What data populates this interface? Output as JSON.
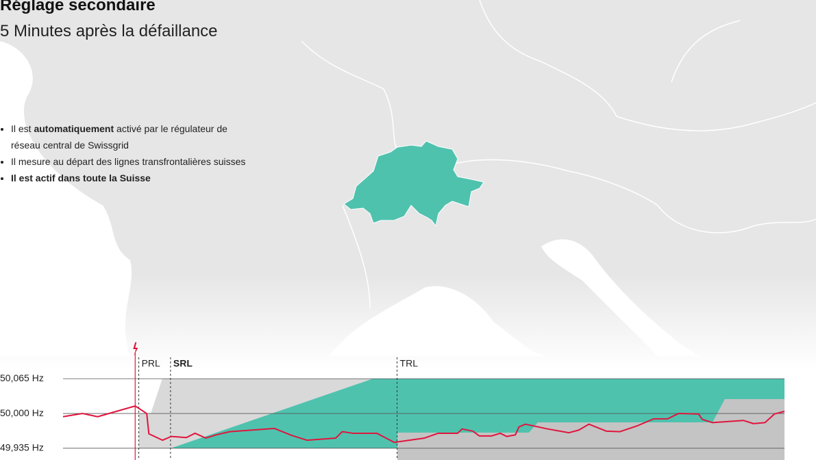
{
  "header": {
    "title": "Réglage secondaire",
    "subtitle": "5 Minutes après la défaillance"
  },
  "bullets": [
    {
      "segments": [
        {
          "text": "Il est "
        },
        {
          "text": "automatiquement",
          "bold": true
        },
        {
          "text": " activé par le régulateur de réseau central de Swissgrid"
        }
      ]
    },
    {
      "segments": [
        {
          "text": "Il mesure au départ des lignes transfrontalières suisses"
        }
      ]
    },
    {
      "segments": [
        {
          "text": "Il est actif dans toute la Suisse",
          "bold": true
        }
      ]
    }
  ],
  "chart_data": {
    "type": "line",
    "x": [
      0,
      2.7,
      4.8,
      10.0,
      11.6,
      11.9,
      13.8,
      15.0,
      17.1,
      18.3,
      19.8,
      21.2,
      23.1,
      29.3,
      31.7,
      33.8,
      37.8,
      38.7,
      40.2,
      43.5,
      45.9,
      50.1,
      52.0,
      54.7,
      55.3,
      56.8,
      57.7,
      59.4,
      60.6,
      61.5,
      62.7,
      63.2,
      64.1,
      67.2,
      70.1,
      71.5,
      72.9,
      75.3,
      77.2,
      79.6,
      81.9,
      83.8,
      85.3,
      88.1,
      88.6,
      90.0,
      94.3,
      95.7,
      97.3,
      98.6,
      100
    ],
    "series": [
      {
        "color": "#e0143c",
        "values": [
          49.994,
          50.0,
          49.994,
          50.014,
          50.0,
          49.962,
          49.95,
          49.957,
          49.955,
          49.963,
          49.954,
          49.96,
          49.966,
          49.972,
          49.959,
          49.95,
          49.954,
          49.966,
          49.963,
          49.963,
          49.946,
          49.954,
          49.963,
          49.963,
          49.971,
          49.967,
          49.958,
          49.958,
          49.963,
          49.957,
          49.96,
          49.975,
          49.98,
          49.971,
          49.964,
          49.969,
          49.98,
          49.967,
          49.966,
          49.977,
          49.99,
          49.99,
          50.0,
          49.999,
          49.989,
          49.983,
          49.987,
          49.981,
          49.983,
          49.999,
          50.004
        ]
      }
    ],
    "xlim": [
      0,
      100
    ],
    "ylim": [
      49.913,
      50.082
    ],
    "yticks": [
      {
        "value": 50.065,
        "label": "50,065 Hz"
      },
      {
        "value": 50.0,
        "label": "50,000 Hz"
      },
      {
        "value": 49.935,
        "label": "49,935 Hz"
      }
    ],
    "grid": true,
    "event_x": 10.0,
    "annotations": [
      {
        "label": "PRL",
        "x": 10.5
      },
      {
        "label": "SRL",
        "x": 14.9,
        "bold": true
      },
      {
        "label": "TRL",
        "x": 46.3
      }
    ]
  }
}
